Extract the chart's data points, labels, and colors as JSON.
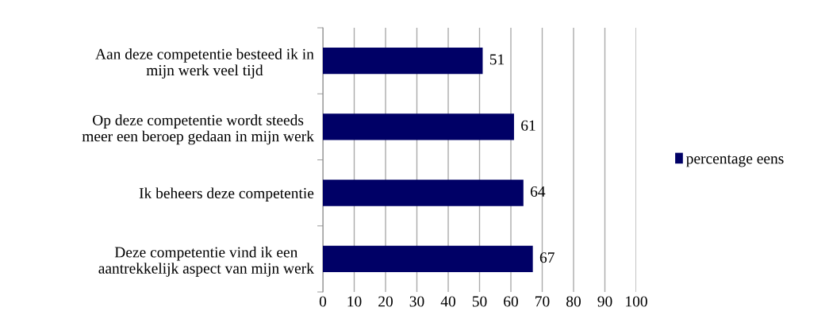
{
  "chart_data": {
    "type": "bar",
    "orientation": "horizontal",
    "categories": [
      "Aan deze competentie besteed ik in\nmijn werk veel tijd",
      "Op deze competentie wordt steeds\nmeer een beroep gedaan in mijn werk",
      "Ik beheers deze competentie",
      "Deze competentie vind ik een\naantrekkelijk aspect van mijn werk"
    ],
    "series": [
      {
        "name": "percentage eens",
        "color": "#000066",
        "values": [
          51,
          61,
          64,
          67
        ]
      }
    ],
    "xlim": [
      0,
      100
    ],
    "xticks": [
      0,
      10,
      20,
      30,
      40,
      50,
      60,
      70,
      80,
      90,
      100
    ],
    "grid": "x",
    "legend": "right",
    "data_labels": true
  }
}
